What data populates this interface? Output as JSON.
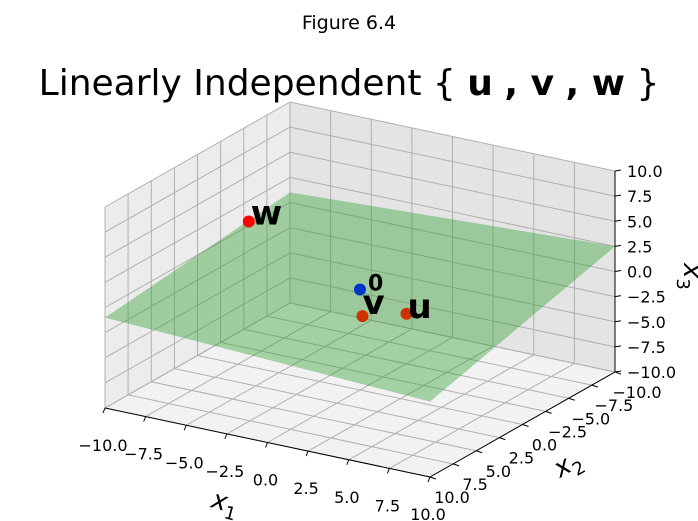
{
  "figure": {
    "suptitle": "Figure 6.4"
  },
  "chart_data": {
    "type": "scatter",
    "projection": "3d",
    "title_prefix": "Linearly Independent ",
    "title_math": [
      "{",
      "u",
      ", ",
      "v",
      ", ",
      "w",
      "}"
    ],
    "xlabel": "x",
    "xlabel_sub": "1",
    "ylabel": "x",
    "ylabel_sub": "2",
    "zlabel": "x",
    "zlabel_sub": "3",
    "xlim": [
      -10,
      10
    ],
    "ylim": [
      -10,
      10
    ],
    "zlim": [
      -10,
      10
    ],
    "xticks": [
      "−10.0",
      "−7.5",
      "−5.0",
      "−2.5",
      "0.0",
      "2.5",
      "5.0",
      "7.5",
      "10.0"
    ],
    "yticks": [
      "−10.0",
      "−7.5",
      "−5.0",
      "−2.5",
      "0.0",
      "2.5",
      "5.0",
      "7.5",
      "10.0"
    ],
    "zticks": [
      "−10.0",
      "−7.5",
      "−5.0",
      "−2.5",
      "0.0",
      "2.5",
      "5.0",
      "7.5",
      "10.0"
    ],
    "grid": true,
    "plane": {
      "label": "",
      "color": "#2ca02c",
      "description": "span of u and v"
    },
    "points": [
      {
        "label": "0",
        "x": 0,
        "y": 0,
        "z": 0,
        "color": "#0033cc"
      },
      {
        "label": "u",
        "x": 4,
        "y": 2,
        "z": 0,
        "color": "#cc3300"
      },
      {
        "label": "v",
        "x": 3,
        "y": 5,
        "z": 1,
        "color": "#cc3300"
      },
      {
        "label": "w",
        "x": -4,
        "y": 5,
        "z": 8,
        "color": "#ff0000"
      }
    ]
  }
}
